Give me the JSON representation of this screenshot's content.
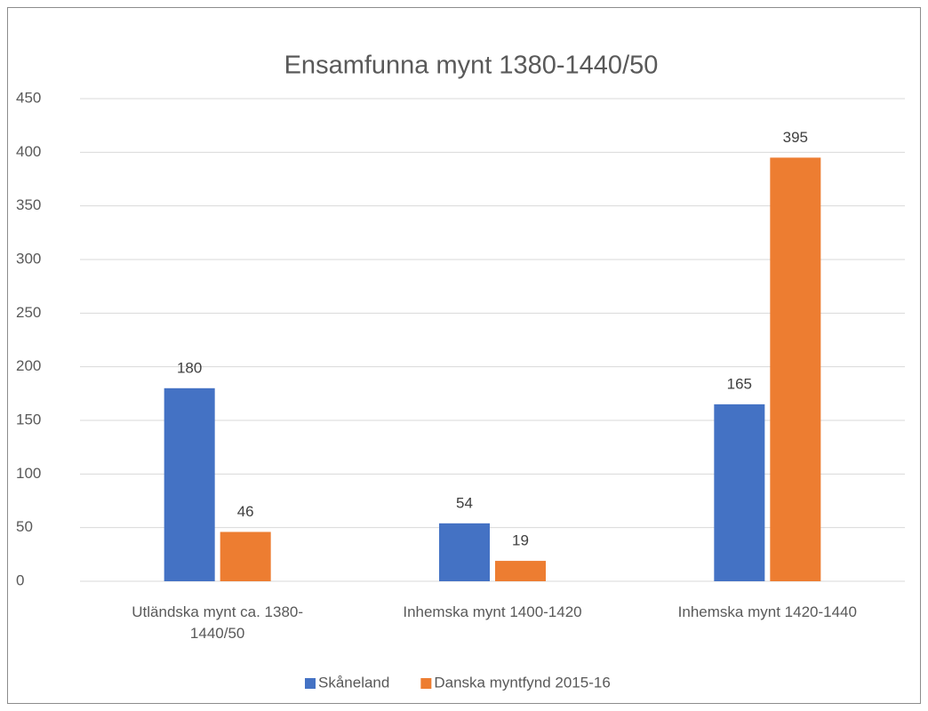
{
  "chart_data": {
    "type": "bar",
    "title": "Ensamfunna mynt 1380-1440/50",
    "categories": [
      "Utländska mynt  ca. 1380-1440/50",
      "Inhemska mynt 1400-1420",
      "Inhemska mynt 1420-1440"
    ],
    "series": [
      {
        "name": "Skåneland",
        "color": "#4472c4",
        "values": [
          180,
          54,
          165
        ]
      },
      {
        "name": "Danska myntfynd 2015-16",
        "color": "#ed7d31",
        "values": [
          46,
          19,
          395
        ]
      }
    ],
    "ylim": [
      0,
      450
    ],
    "yticks": [
      0,
      50,
      100,
      150,
      200,
      250,
      300,
      350,
      400,
      450
    ],
    "grid": true,
    "legend": "bottom"
  }
}
